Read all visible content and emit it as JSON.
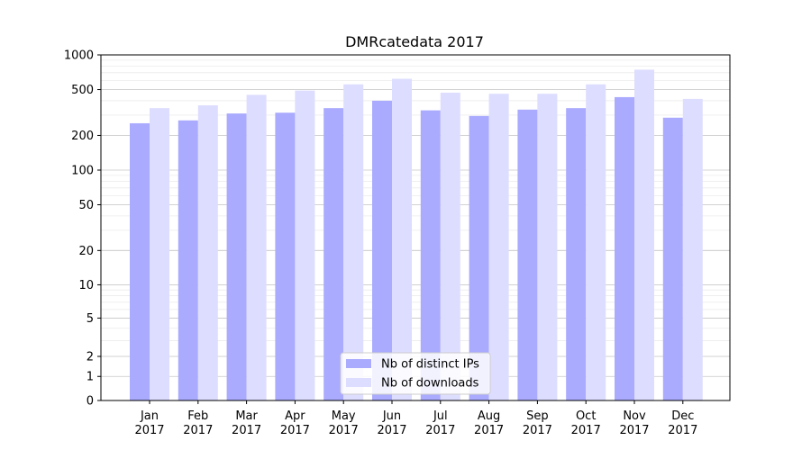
{
  "chart_data": {
    "type": "bar",
    "title": "DMRcatedata 2017",
    "xlabel": "",
    "ylabel": "",
    "yscale": "symlog",
    "ylim": [
      0,
      1000
    ],
    "yticks": [
      0,
      1,
      2,
      5,
      10,
      20,
      50,
      100,
      200,
      500,
      1000
    ],
    "categories": [
      [
        "Jan",
        "2017"
      ],
      [
        "Feb",
        "2017"
      ],
      [
        "Mar",
        "2017"
      ],
      [
        "Apr",
        "2017"
      ],
      [
        "May",
        "2017"
      ],
      [
        "Jun",
        "2017"
      ],
      [
        "Jul",
        "2017"
      ],
      [
        "Aug",
        "2017"
      ],
      [
        "Sep",
        "2017"
      ],
      [
        "Oct",
        "2017"
      ],
      [
        "Nov",
        "2017"
      ],
      [
        "Dec",
        "2017"
      ]
    ],
    "series": [
      {
        "name": "Nb of distinct IPs",
        "color": "#aaaaff",
        "values": [
          255,
          270,
          310,
          315,
          345,
          400,
          330,
          295,
          335,
          345,
          430,
          285
        ]
      },
      {
        "name": "Nb of downloads",
        "color": "#ddddff",
        "values": [
          345,
          365,
          450,
          490,
          555,
          620,
          470,
          460,
          460,
          555,
          745,
          415
        ]
      }
    ],
    "legend_position": "bottom-center",
    "grid": true
  }
}
